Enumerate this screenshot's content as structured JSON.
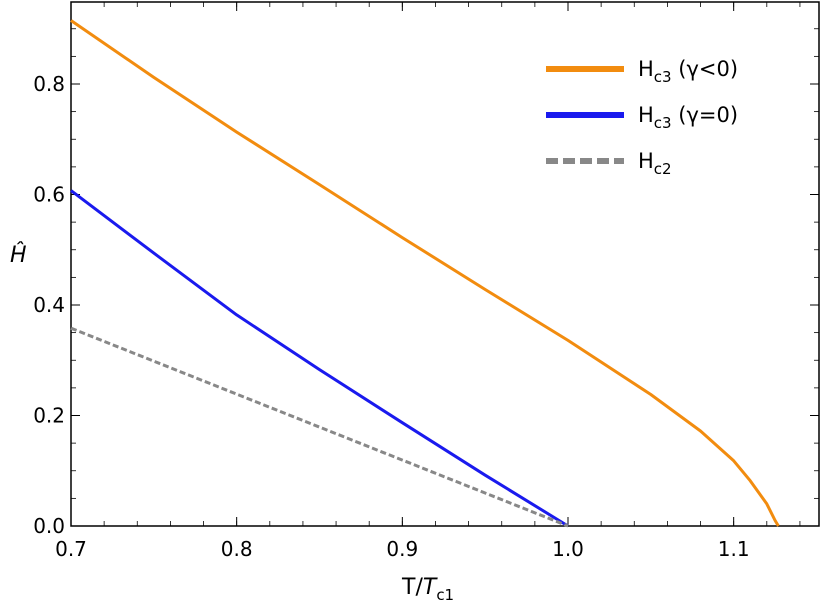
{
  "chart_data": {
    "type": "line",
    "xlabel": {
      "main": "T/",
      "italic": "T",
      "sub": "c1"
    },
    "ylabel": "Ĥ",
    "xlim": [
      0.7,
      1.15
    ],
    "ylim": [
      0.0,
      0.9
    ],
    "xticks": [
      "0.7",
      "0.8",
      "0.9",
      "1.0",
      "1.1"
    ],
    "xtick_values": [
      0.7,
      0.8,
      0.9,
      1.0,
      1.1
    ],
    "yticks": [
      "0.0",
      "0.2",
      "0.4",
      "0.6",
      "0.8"
    ],
    "ytick_values": [
      0.0,
      0.2,
      0.4,
      0.6,
      0.8
    ],
    "legend_position": "top-right",
    "series": [
      {
        "name": "Hc3 (γ<0)",
        "legend": {
          "main": "H",
          "sub": "c3",
          "rest": " (γ<0)"
        },
        "color": "#F28C0F",
        "style": "solid",
        "x": [
          0.7,
          0.75,
          0.8,
          0.85,
          0.9,
          0.95,
          1.0,
          1.05,
          1.08,
          1.1,
          1.11,
          1.12,
          1.125,
          1.127
        ],
        "y": [
          0.915,
          0.812,
          0.713,
          0.618,
          0.522,
          0.428,
          0.336,
          0.238,
          0.172,
          0.118,
          0.082,
          0.04,
          0.01,
          0.0
        ]
      },
      {
        "name": "Hc3 (γ=0)",
        "legend": {
          "main": "H",
          "sub": "c3",
          "rest": " (γ=0)"
        },
        "color": "#1A1AEE",
        "style": "solid",
        "x": [
          0.7,
          0.75,
          0.8,
          0.85,
          0.9,
          0.95,
          1.0
        ],
        "y": [
          0.607,
          0.494,
          0.382,
          0.283,
          0.187,
          0.092,
          0.0
        ]
      },
      {
        "name": "Hc2",
        "legend": {
          "main": "H",
          "sub": "c2",
          "rest": ""
        },
        "color": "#888888",
        "style": "dashed",
        "x": [
          0.7,
          1.0
        ],
        "y": [
          0.358,
          0.0
        ]
      }
    ]
  }
}
